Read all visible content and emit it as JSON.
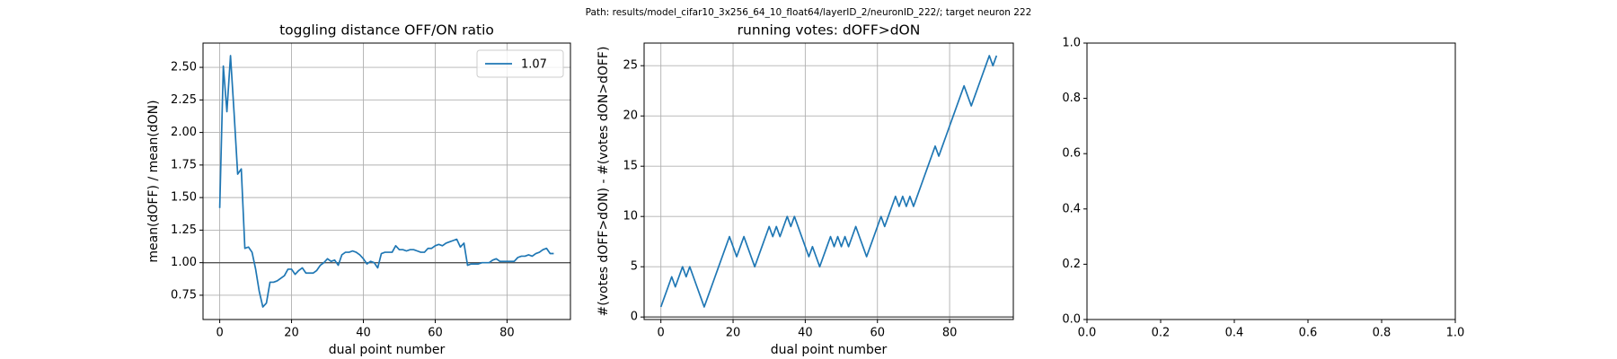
{
  "suptitle": "Path: results/model_cifar10_3x256_64_10_float64/layerID_2/neuronID_222/; target neuron 222",
  "chart_data": [
    {
      "type": "line",
      "title": "toggling distance OFF/ON ratio",
      "xlabel": "dual point number",
      "ylabel": "mean(dOFF) / mean(dON)",
      "x": [
        0,
        1,
        2,
        3,
        4,
        5,
        6,
        7,
        8,
        9,
        10,
        11,
        12,
        13,
        14,
        15,
        16,
        17,
        18,
        19,
        20,
        21,
        22,
        23,
        24,
        25,
        26,
        27,
        28,
        29,
        30,
        31,
        32,
        33,
        34,
        35,
        36,
        37,
        38,
        39,
        40,
        41,
        42,
        43,
        44,
        45,
        46,
        47,
        48,
        49,
        50,
        51,
        52,
        53,
        54,
        55,
        56,
        57,
        58,
        59,
        60,
        61,
        62,
        63,
        64,
        65,
        66,
        67,
        68,
        69,
        70,
        71,
        72,
        73,
        74,
        75,
        76,
        77,
        78,
        79,
        80,
        81,
        82,
        83,
        84,
        85,
        86,
        87,
        88,
        89,
        90,
        91,
        92,
        93
      ],
      "series": [
        {
          "name": "1.07",
          "color": "#1f77b4",
          "values": [
            1.42,
            2.51,
            2.16,
            2.59,
            2.15,
            1.68,
            1.72,
            1.11,
            1.12,
            1.08,
            0.95,
            0.78,
            0.66,
            0.69,
            0.85,
            0.85,
            0.86,
            0.88,
            0.9,
            0.95,
            0.95,
            0.91,
            0.94,
            0.96,
            0.92,
            0.92,
            0.92,
            0.94,
            0.98,
            1.0,
            1.03,
            1.01,
            1.02,
            0.98,
            1.06,
            1.08,
            1.08,
            1.09,
            1.08,
            1.06,
            1.03,
            0.99,
            1.01,
            1.0,
            0.96,
            1.07,
            1.08,
            1.08,
            1.08,
            1.13,
            1.1,
            1.1,
            1.09,
            1.1,
            1.1,
            1.09,
            1.08,
            1.08,
            1.11,
            1.11,
            1.13,
            1.14,
            1.13,
            1.15,
            1.16,
            1.17,
            1.18,
            1.12,
            1.15,
            0.98,
            0.99,
            0.99,
            0.99,
            1.0,
            1.0,
            1.0,
            1.02,
            1.03,
            1.01,
            1.01,
            1.01,
            1.01,
            1.01,
            1.04,
            1.05,
            1.05,
            1.06,
            1.05,
            1.07,
            1.08,
            1.1,
            1.11,
            1.07,
            1.07
          ]
        }
      ],
      "hline": 1,
      "hline_color": "#555555",
      "xlim": [
        -4.65,
        97.65
      ],
      "xticks": [
        0,
        20,
        40,
        60,
        80
      ],
      "ylim": [
        0.5635,
        2.6865
      ],
      "yticks": [
        {
          "value": 0.75,
          "label": "0.75"
        },
        {
          "value": 1,
          "label": "1.00"
        },
        {
          "value": 1.25,
          "label": "1.25"
        },
        {
          "value": 1.5,
          "label": "1.50"
        },
        {
          "value": 1.75,
          "label": "1.75"
        },
        {
          "value": 2,
          "label": "2.00"
        },
        {
          "value": 2.25,
          "label": "2.25"
        },
        {
          "value": 2.5,
          "label": "2.50"
        }
      ],
      "grid": true,
      "legend": "upper right"
    },
    {
      "type": "line",
      "title": "running votes: dOFF>dON",
      "xlabel": "dual point number",
      "ylabel": "#(votes dOFF>dON) - #(votes dON>dOFF)",
      "x": [
        0,
        1,
        2,
        3,
        4,
        5,
        6,
        7,
        8,
        9,
        10,
        11,
        12,
        13,
        14,
        15,
        16,
        17,
        18,
        19,
        20,
        21,
        22,
        23,
        24,
        25,
        26,
        27,
        28,
        29,
        30,
        31,
        32,
        33,
        34,
        35,
        36,
        37,
        38,
        39,
        40,
        41,
        42,
        43,
        44,
        45,
        46,
        47,
        48,
        49,
        50,
        51,
        52,
        53,
        54,
        55,
        56,
        57,
        58,
        59,
        60,
        61,
        62,
        63,
        64,
        65,
        66,
        67,
        68,
        69,
        70,
        71,
        72,
        73,
        74,
        75,
        76,
        77,
        78,
        79,
        80,
        81,
        82,
        83,
        84,
        85,
        86,
        87,
        88,
        89,
        90,
        91,
        92,
        93
      ],
      "series": [
        {
          "color": "#1f77b4",
          "values": [
            1,
            2,
            3,
            4,
            3,
            4,
            5,
            4,
            5,
            4,
            3,
            2,
            1,
            2,
            3,
            4,
            5,
            6,
            7,
            8,
            7,
            6,
            7,
            8,
            7,
            6,
            5,
            6,
            7,
            8,
            9,
            8,
            9,
            8,
            9,
            10,
            9,
            10,
            9,
            8,
            7,
            6,
            7,
            6,
            5,
            6,
            7,
            8,
            7,
            8,
            7,
            8,
            7,
            8,
            9,
            8,
            7,
            6,
            7,
            8,
            9,
            10,
            9,
            10,
            11,
            12,
            11,
            12,
            11,
            12,
            11,
            12,
            13,
            14,
            15,
            16,
            17,
            16,
            17,
            18,
            19,
            20,
            21,
            22,
            23,
            22,
            21,
            22,
            23,
            24,
            25,
            26,
            25,
            26
          ]
        }
      ],
      "hline": 0,
      "hline_color": "#555555",
      "xlim": [
        -4.65,
        97.65
      ],
      "xticks": [
        0,
        20,
        40,
        60,
        80
      ],
      "ylim": [
        -0.25,
        27.25
      ],
      "yticks": [
        0,
        5,
        10,
        15,
        20,
        25
      ],
      "grid": true
    },
    {
      "type": "empty",
      "xlim": [
        0,
        1
      ],
      "xticks": [
        {
          "value": 0,
          "label": "0.0"
        },
        {
          "value": 0.2,
          "label": "0.2"
        },
        {
          "value": 0.4,
          "label": "0.4"
        },
        {
          "value": 0.6,
          "label": "0.6"
        },
        {
          "value": 0.8,
          "label": "0.8"
        },
        {
          "value": 1,
          "label": "1.0"
        }
      ],
      "ylim": [
        0,
        1
      ],
      "yticks": [
        {
          "value": 0,
          "label": "0.0"
        },
        {
          "value": 0.2,
          "label": "0.2"
        },
        {
          "value": 0.4,
          "label": "0.4"
        },
        {
          "value": 0.6,
          "label": "0.6"
        },
        {
          "value": 0.8,
          "label": "0.8"
        },
        {
          "value": 1,
          "label": "1.0"
        }
      ],
      "grid": false
    }
  ]
}
